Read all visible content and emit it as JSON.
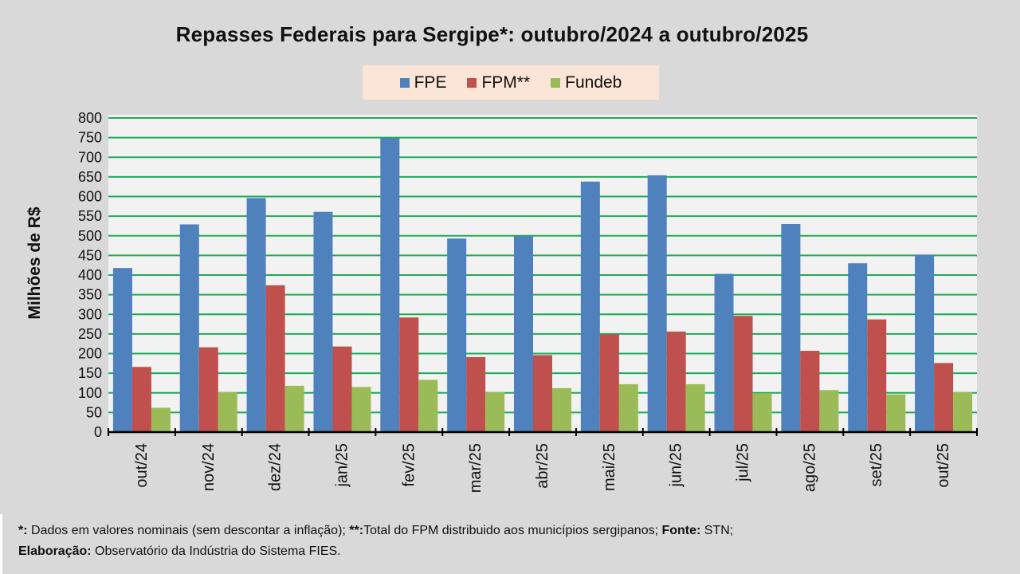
{
  "chart_data": {
    "type": "bar",
    "title": "Repasses Federais para Sergipe*: outubro/2024 a outubro/2025",
    "xlabel": "",
    "ylabel": "Milhões de R$",
    "ylim": [
      0,
      800
    ],
    "yticks": [
      0,
      50,
      100,
      150,
      200,
      250,
      300,
      350,
      400,
      450,
      500,
      550,
      600,
      650,
      700,
      750,
      800
    ],
    "grid": true,
    "legend_position": "top-center",
    "categories": [
      "out/24",
      "nov/24",
      "dez/24",
      "jan/25",
      "fev/25",
      "mar/25",
      "abr/25",
      "mai/25",
      "jun/25",
      "jul/25",
      "ago/25",
      "set/25",
      "out/25"
    ],
    "series": [
      {
        "name": "FPE",
        "color": "#4f81bd",
        "values": [
          418,
          529,
          596,
          561,
          749,
          493,
          499,
          638,
          654,
          403,
          530,
          430,
          452
        ]
      },
      {
        "name": "FPM**",
        "color": "#c0504d",
        "values": [
          166,
          216,
          374,
          218,
          292,
          191,
          196,
          249,
          256,
          296,
          207,
          287,
          176
        ]
      },
      {
        "name": "Fundeb",
        "color": "#9bbb59",
        "values": [
          62,
          102,
          118,
          115,
          133,
          102,
          112,
          122,
          122,
          99,
          107,
          96,
          102
        ]
      }
    ]
  },
  "footnote": {
    "line1_marker1": "*:",
    "line1_text1": " Dados em valores nominais (sem descontar a inflação); ",
    "line1_marker2": "**:",
    "line1_text2": "Total  do FPM distribuido aos municípios sergipanos; ",
    "line1_marker3": "Fonte:",
    "line1_text3": " STN;",
    "line2_marker": "Elaboração:",
    "line2_text": " Observatório da Indústria do Sistema FIES."
  },
  "colors": {
    "gridline": "#1faa59",
    "plot_background": "#f2f2f2",
    "page_background": "#d9d9d9",
    "legend_background": "#fbe5d6"
  }
}
